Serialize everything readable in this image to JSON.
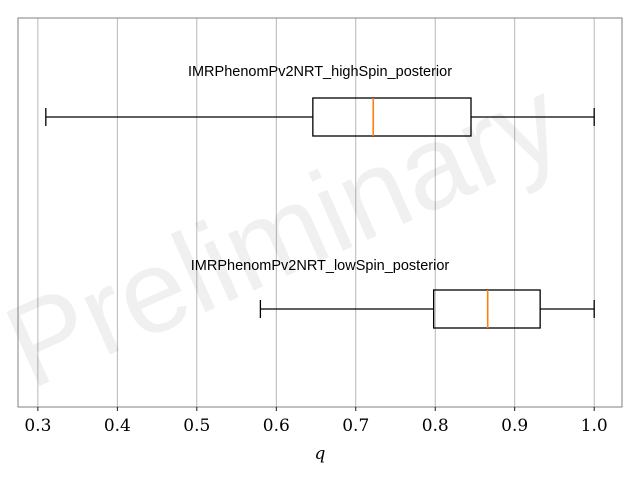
{
  "chart_data": {
    "type": "boxplot",
    "orientation": "horizontal",
    "title": "",
    "xlabel": "q",
    "ylabel": "",
    "xlim": [
      0.275,
      1.035
    ],
    "xticks": [
      0.3,
      0.4,
      0.5,
      0.6,
      0.7,
      0.8,
      0.9,
      1.0
    ],
    "xtick_labels": [
      "0.3",
      "0.4",
      "0.5",
      "0.6",
      "0.7",
      "0.8",
      "0.9",
      "1.0"
    ],
    "grid": "vertical",
    "watermark": "Preliminary",
    "series": [
      {
        "label": "IMRPhenomPv2NRT_highSpin_posterior",
        "whisker_low": 0.31,
        "q1": 0.646,
        "median": 0.722,
        "q3": 0.845,
        "whisker_high": 1.0
      },
      {
        "label": "IMRPhenomPv2NRT_lowSpin_posterior",
        "whisker_low": 0.58,
        "q1": 0.798,
        "median": 0.866,
        "q3": 0.932,
        "whisker_high": 1.0
      }
    ],
    "colors": {
      "box": "#000000",
      "median": "#ff7f0e",
      "grid": "#b0b0b0",
      "frame": "#808080"
    }
  }
}
